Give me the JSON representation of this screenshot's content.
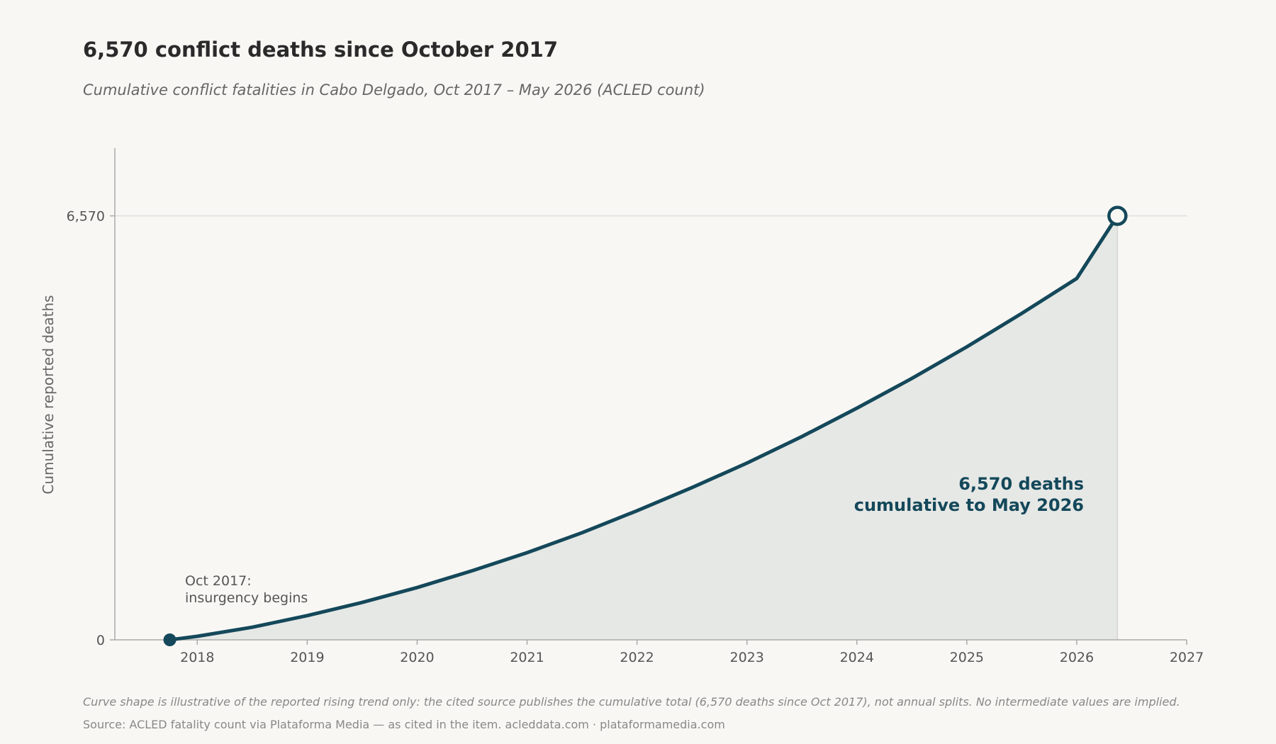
{
  "chart_data": {
    "type": "area",
    "title": "6,570 conflict deaths since October 2017",
    "subtitle": "Cumulative conflict fatalities in Cabo Delgado, Oct 2017 – May 2026 (ACLED count)",
    "xlabel": "",
    "ylabel": "Cumulative reported deaths",
    "xlim": [
      2017.25,
      2027
    ],
    "ylim": [
      0,
      7620
    ],
    "x_ticks": [
      "2018",
      "2019",
      "2020",
      "2021",
      "2022",
      "2023",
      "2024",
      "2025",
      "2026",
      "2027"
    ],
    "y_ticks": [
      {
        "value": 0,
        "label": "0"
      },
      {
        "value": 6570,
        "label": "6,570"
      }
    ],
    "grid": "horizontal at 6,570",
    "series": [
      {
        "x": [
          2017.75,
          2018.0,
          2018.5,
          2019.0,
          2019.5,
          2020.0,
          2020.5,
          2021.0,
          2021.5,
          2022.0,
          2022.5,
          2023.0,
          2023.5,
          2024.0,
          2024.5,
          2025.0,
          2025.5,
          2026.0,
          2026.37
        ],
        "y": [
          0,
          55,
          195,
          375,
          580,
          810,
          1070,
          1350,
          1660,
          2000,
          2360,
          2740,
          3150,
          3590,
          4050,
          4540,
          5060,
          5600,
          6570
        ]
      }
    ],
    "annotations": {
      "start": {
        "x": 2017.75,
        "y": 0,
        "lines": [
          "Oct 2017:",
          "insurgency begins"
        ]
      },
      "end": {
        "x": 2026.37,
        "y": 6570,
        "lines": [
          "6,570 deaths",
          "cumulative to May 2026"
        ]
      }
    },
    "colors": {
      "line": "#14485a",
      "fill": "#e6e8e6",
      "background": "#f9f7f4"
    }
  },
  "footer": {
    "note": "Curve shape is illustrative of the reported rising trend only: the cited source publishes the cumulative total (6,570 deaths since Oct 2017), not annual splits. No intermediate values are implied.",
    "source": "Source: ACLED fatality count via Plataforma Media — as cited in the item. acleddata.com · plataformamedia.com"
  }
}
